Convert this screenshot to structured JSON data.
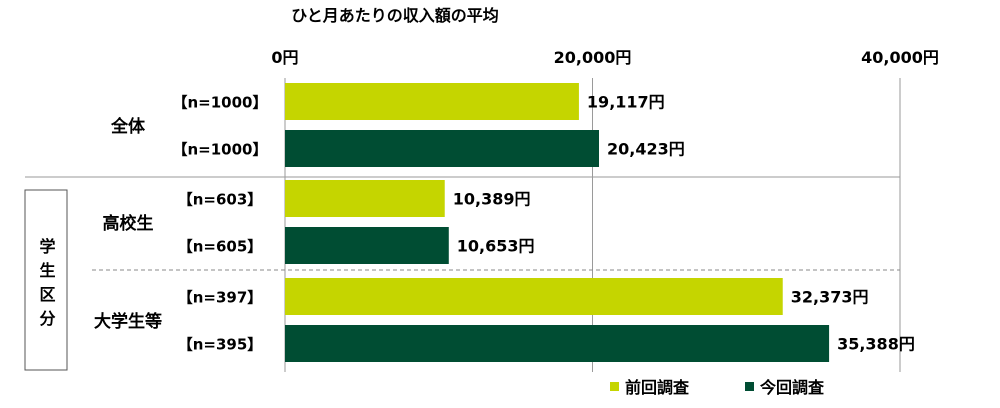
{
  "chart_data": {
    "type": "bar",
    "orientation": "horizontal",
    "title": "ひと月あたりの収入額の平均",
    "xlim": [
      0,
      40000
    ],
    "x_ticks": [
      {
        "value": 0,
        "label": "0円"
      },
      {
        "value": 20000,
        "label": "20,000円"
      },
      {
        "value": 40000,
        "label": "40,000円"
      }
    ],
    "grid": true,
    "legend_position": "bottom-right",
    "colors": {
      "previous": "#C5D500",
      "current": "#004D33"
    },
    "legend": [
      {
        "key": "previous",
        "label": "前回調査"
      },
      {
        "key": "current",
        "label": "今回調査"
      }
    ],
    "side_group_label": "学生区分",
    "groups": [
      {
        "label": "全体",
        "bars": [
          {
            "series": "previous",
            "n_label": "【n=1000】",
            "value": 19117,
            "value_label": "19,117円"
          },
          {
            "series": "current",
            "n_label": "【n=1000】",
            "value": 20423,
            "value_label": "20,423円"
          }
        ]
      },
      {
        "label": "高校生",
        "bars": [
          {
            "series": "previous",
            "n_label": "【n=603】",
            "value": 10389,
            "value_label": "10,389円"
          },
          {
            "series": "current",
            "n_label": "【n=605】",
            "value": 10653,
            "value_label": "10,653円"
          }
        ]
      },
      {
        "label": "大学生等",
        "bars": [
          {
            "series": "previous",
            "n_label": "【n=397】",
            "value": 32373,
            "value_label": "32,373円"
          },
          {
            "series": "current",
            "n_label": "【n=395】",
            "value": 35388,
            "value_label": "35,388円"
          }
        ]
      }
    ]
  }
}
